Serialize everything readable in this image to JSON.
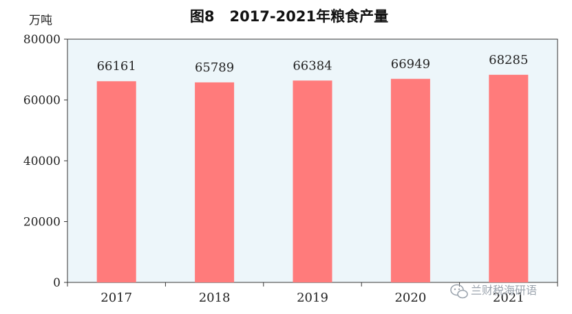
{
  "chart_data": {
    "type": "bar",
    "title": "图8   2017-2021年粮食产量",
    "unit_label": "万吨",
    "categories": [
      "2017",
      "2018",
      "2019",
      "2020",
      "2021"
    ],
    "values": [
      66161,
      65789,
      66384,
      66949,
      68285
    ],
    "data_labels": [
      "66161",
      "65789",
      "66384",
      "66949",
      "68285"
    ],
    "ylim": [
      0,
      80000
    ],
    "yticks": [
      0,
      20000,
      40000,
      60000,
      80000
    ],
    "ytick_labels": [
      "0",
      "20000",
      "40000",
      "60000",
      "80000"
    ],
    "grid": false,
    "legend": "none",
    "colors": {
      "bar": "#ff7b7b",
      "plot_background": "#edf6fa",
      "axis": "#333333"
    }
  },
  "watermark": {
    "text": "兰财税海研语",
    "icon": "wechat-icon"
  }
}
